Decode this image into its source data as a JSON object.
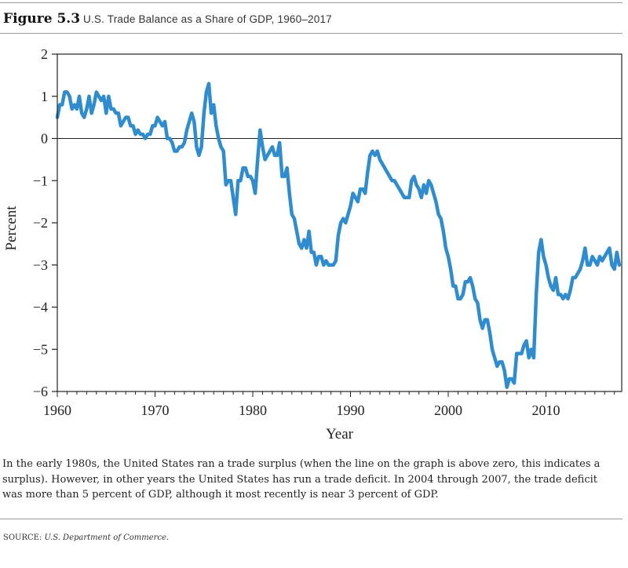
{
  "figure": {
    "number": "Figure 5.3",
    "title": "U.S. Trade Balance as a Share of GDP, 1960–2017"
  },
  "chart_data": {
    "type": "line",
    "xlabel": "Year",
    "ylabel": "Percent",
    "xlim": [
      1960,
      2017.75
    ],
    "ylim": [
      -6,
      2
    ],
    "x_ticks": [
      1960,
      1970,
      1980,
      1990,
      2000,
      2010
    ],
    "y_ticks": [
      2,
      1,
      0,
      -1,
      -2,
      -3,
      -4,
      -5,
      -6
    ],
    "zero_line": true,
    "grid": false,
    "line_color": "#2f8ccf",
    "series": [
      {
        "points": [
          [
            1960.0,
            0.5
          ],
          [
            1960.25,
            0.8
          ],
          [
            1960.5,
            0.8
          ],
          [
            1960.75,
            1.1
          ],
          [
            1961.0,
            1.1
          ],
          [
            1961.25,
            1.0
          ],
          [
            1961.5,
            0.7
          ],
          [
            1961.75,
            0.8
          ],
          [
            1962.0,
            0.7
          ],
          [
            1962.25,
            1.0
          ],
          [
            1962.5,
            0.6
          ],
          [
            1962.75,
            0.5
          ],
          [
            1963.0,
            0.7
          ],
          [
            1963.25,
            1.0
          ],
          [
            1963.5,
            0.6
          ],
          [
            1963.75,
            0.8
          ],
          [
            1964.0,
            1.1
          ],
          [
            1964.25,
            1.0
          ],
          [
            1964.5,
            0.9
          ],
          [
            1964.75,
            1.0
          ],
          [
            1965.0,
            0.6
          ],
          [
            1965.25,
            1.0
          ],
          [
            1965.5,
            0.7
          ],
          [
            1965.75,
            0.7
          ],
          [
            1966.0,
            0.6
          ],
          [
            1966.25,
            0.6
          ],
          [
            1966.5,
            0.3
          ],
          [
            1966.75,
            0.4
          ],
          [
            1967.0,
            0.5
          ],
          [
            1967.25,
            0.5
          ],
          [
            1967.5,
            0.3
          ],
          [
            1967.75,
            0.3
          ],
          [
            1968.0,
            0.1
          ],
          [
            1968.25,
            0.2
          ],
          [
            1968.5,
            0.1
          ],
          [
            1968.75,
            0.1
          ],
          [
            1969.0,
            0.0
          ],
          [
            1969.25,
            0.1
          ],
          [
            1969.5,
            0.1
          ],
          [
            1969.75,
            0.3
          ],
          [
            1970.0,
            0.3
          ],
          [
            1970.25,
            0.5
          ],
          [
            1970.5,
            0.4
          ],
          [
            1970.75,
            0.3
          ],
          [
            1971.0,
            0.4
          ],
          [
            1971.25,
            0.0
          ],
          [
            1971.5,
            0.0
          ],
          [
            1971.75,
            -0.1
          ],
          [
            1972.0,
            -0.3
          ],
          [
            1972.25,
            -0.3
          ],
          [
            1972.5,
            -0.2
          ],
          [
            1972.75,
            -0.2
          ],
          [
            1973.0,
            -0.1
          ],
          [
            1973.25,
            0.2
          ],
          [
            1973.5,
            0.4
          ],
          [
            1973.75,
            0.6
          ],
          [
            1974.0,
            0.4
          ],
          [
            1974.25,
            -0.2
          ],
          [
            1974.5,
            -0.4
          ],
          [
            1974.75,
            -0.2
          ],
          [
            1975.0,
            0.6
          ],
          [
            1975.25,
            1.1
          ],
          [
            1975.5,
            1.3
          ],
          [
            1975.75,
            0.6
          ],
          [
            1976.0,
            0.8
          ],
          [
            1976.25,
            0.3
          ],
          [
            1976.5,
            0.0
          ],
          [
            1976.75,
            -0.2
          ],
          [
            1977.0,
            -0.3
          ],
          [
            1977.25,
            -1.1
          ],
          [
            1977.5,
            -1.0
          ],
          [
            1977.75,
            -1.0
          ],
          [
            1978.0,
            -1.4
          ],
          [
            1978.25,
            -1.8
          ],
          [
            1978.5,
            -1.0
          ],
          [
            1978.75,
            -1.0
          ],
          [
            1979.0,
            -0.7
          ],
          [
            1979.25,
            -0.7
          ],
          [
            1979.5,
            -0.9
          ],
          [
            1979.75,
            -0.9
          ],
          [
            1980.0,
            -1.0
          ],
          [
            1980.25,
            -1.3
          ],
          [
            1980.5,
            -0.5
          ],
          [
            1980.75,
            0.2
          ],
          [
            1981.0,
            -0.2
          ],
          [
            1981.25,
            -0.5
          ],
          [
            1981.5,
            -0.4
          ],
          [
            1981.75,
            -0.3
          ],
          [
            1982.0,
            -0.2
          ],
          [
            1982.25,
            -0.4
          ],
          [
            1982.5,
            -0.4
          ],
          [
            1982.75,
            -0.1
          ],
          [
            1983.0,
            -0.9
          ],
          [
            1983.25,
            -0.9
          ],
          [
            1983.5,
            -0.7
          ],
          [
            1983.75,
            -1.3
          ],
          [
            1984.0,
            -1.8
          ],
          [
            1984.25,
            -1.9
          ],
          [
            1984.5,
            -2.2
          ],
          [
            1984.75,
            -2.5
          ],
          [
            1985.0,
            -2.6
          ],
          [
            1985.25,
            -2.4
          ],
          [
            1985.5,
            -2.6
          ],
          [
            1985.75,
            -2.2
          ],
          [
            1986.0,
            -2.7
          ],
          [
            1986.25,
            -2.7
          ],
          [
            1986.5,
            -3.0
          ],
          [
            1986.75,
            -2.8
          ],
          [
            1987.0,
            -2.8
          ],
          [
            1987.25,
            -3.0
          ],
          [
            1987.5,
            -2.9
          ],
          [
            1987.75,
            -3.0
          ],
          [
            1988.0,
            -3.0
          ],
          [
            1988.25,
            -3.0
          ],
          [
            1988.5,
            -2.9
          ],
          [
            1988.75,
            -2.3
          ],
          [
            1989.0,
            -2.0
          ],
          [
            1989.25,
            -1.9
          ],
          [
            1989.5,
            -2.0
          ],
          [
            1989.75,
            -1.8
          ],
          [
            1990.0,
            -1.6
          ],
          [
            1990.25,
            -1.3
          ],
          [
            1990.5,
            -1.4
          ],
          [
            1990.75,
            -1.5
          ],
          [
            1991.0,
            -1.2
          ],
          [
            1991.25,
            -1.2
          ],
          [
            1991.5,
            -1.3
          ],
          [
            1991.75,
            -0.8
          ],
          [
            1992.0,
            -0.4
          ],
          [
            1992.25,
            -0.3
          ],
          [
            1992.5,
            -0.4
          ],
          [
            1992.75,
            -0.3
          ],
          [
            1993.0,
            -0.5
          ],
          [
            1993.25,
            -0.6
          ],
          [
            1993.5,
            -0.7
          ],
          [
            1993.75,
            -0.8
          ],
          [
            1994.0,
            -0.9
          ],
          [
            1994.25,
            -1.0
          ],
          [
            1994.5,
            -1.0
          ],
          [
            1994.75,
            -1.1
          ],
          [
            1995.0,
            -1.2
          ],
          [
            1995.25,
            -1.3
          ],
          [
            1995.5,
            -1.4
          ],
          [
            1995.75,
            -1.4
          ],
          [
            1996.0,
            -1.4
          ],
          [
            1996.25,
            -1.0
          ],
          [
            1996.5,
            -0.9
          ],
          [
            1996.75,
            -1.1
          ],
          [
            1997.0,
            -1.2
          ],
          [
            1997.25,
            -1.4
          ],
          [
            1997.5,
            -1.1
          ],
          [
            1997.75,
            -1.3
          ],
          [
            1998.0,
            -1.0
          ],
          [
            1998.25,
            -1.1
          ],
          [
            1998.5,
            -1.3
          ],
          [
            1998.75,
            -1.5
          ],
          [
            1999.0,
            -1.8
          ],
          [
            1999.25,
            -1.9
          ],
          [
            1999.5,
            -2.2
          ],
          [
            1999.75,
            -2.6
          ],
          [
            2000.0,
            -2.8
          ],
          [
            2000.25,
            -3.1
          ],
          [
            2000.5,
            -3.5
          ],
          [
            2000.75,
            -3.5
          ],
          [
            2001.0,
            -3.8
          ],
          [
            2001.25,
            -3.8
          ],
          [
            2001.5,
            -3.7
          ],
          [
            2001.75,
            -3.4
          ],
          [
            2002.0,
            -3.4
          ],
          [
            2002.25,
            -3.3
          ],
          [
            2002.5,
            -3.5
          ],
          [
            2002.75,
            -3.8
          ],
          [
            2003.0,
            -3.9
          ],
          [
            2003.25,
            -4.3
          ],
          [
            2003.5,
            -4.5
          ],
          [
            2003.75,
            -4.3
          ],
          [
            2004.0,
            -4.3
          ],
          [
            2004.25,
            -4.6
          ],
          [
            2004.5,
            -5.0
          ],
          [
            2004.75,
            -5.2
          ],
          [
            2005.0,
            -5.4
          ],
          [
            2005.25,
            -5.3
          ],
          [
            2005.5,
            -5.3
          ],
          [
            2005.75,
            -5.5
          ],
          [
            2006.0,
            -5.9
          ],
          [
            2006.25,
            -5.7
          ],
          [
            2006.5,
            -5.7
          ],
          [
            2006.75,
            -5.8
          ],
          [
            2007.0,
            -5.1
          ],
          [
            2007.25,
            -5.1
          ],
          [
            2007.5,
            -5.1
          ],
          [
            2007.75,
            -4.9
          ],
          [
            2008.0,
            -4.8
          ],
          [
            2008.25,
            -5.2
          ],
          [
            2008.5,
            -5.0
          ],
          [
            2008.75,
            -5.2
          ],
          [
            2009.0,
            -3.7
          ],
          [
            2009.25,
            -2.7
          ],
          [
            2009.5,
            -2.4
          ],
          [
            2009.75,
            -2.8
          ],
          [
            2010.0,
            -3.0
          ],
          [
            2010.25,
            -3.3
          ],
          [
            2010.5,
            -3.5
          ],
          [
            2010.75,
            -3.6
          ],
          [
            2011.0,
            -3.3
          ],
          [
            2011.25,
            -3.7
          ],
          [
            2011.5,
            -3.7
          ],
          [
            2011.75,
            -3.8
          ],
          [
            2012.0,
            -3.7
          ],
          [
            2012.25,
            -3.8
          ],
          [
            2012.5,
            -3.6
          ],
          [
            2012.75,
            -3.3
          ],
          [
            2013.0,
            -3.3
          ],
          [
            2013.25,
            -3.2
          ],
          [
            2013.5,
            -3.1
          ],
          [
            2013.75,
            -2.9
          ],
          [
            2014.0,
            -2.6
          ],
          [
            2014.25,
            -3.0
          ],
          [
            2014.5,
            -3.0
          ],
          [
            2014.75,
            -2.8
          ],
          [
            2015.0,
            -2.9
          ],
          [
            2015.25,
            -3.0
          ],
          [
            2015.5,
            -2.8
          ],
          [
            2015.75,
            -2.9
          ],
          [
            2016.0,
            -2.8
          ],
          [
            2016.25,
            -2.7
          ],
          [
            2016.5,
            -2.6
          ],
          [
            2016.75,
            -3.0
          ],
          [
            2017.0,
            -3.1
          ],
          [
            2017.25,
            -2.7
          ],
          [
            2017.5,
            -3.0
          ]
        ]
      }
    ]
  },
  "caption": "In the early 1980s, the United States ran a trade surplus (when the line on the graph is above zero, this indicates a surplus). However, in other years the United States has run a trade deficit. In 2004 through 2007, the trade deficit was more than 5 percent of GDP, although it most recently is near 3 percent of GDP.",
  "source": {
    "label": "SOURCE: ",
    "name": "U.S. Department of Commerce."
  }
}
